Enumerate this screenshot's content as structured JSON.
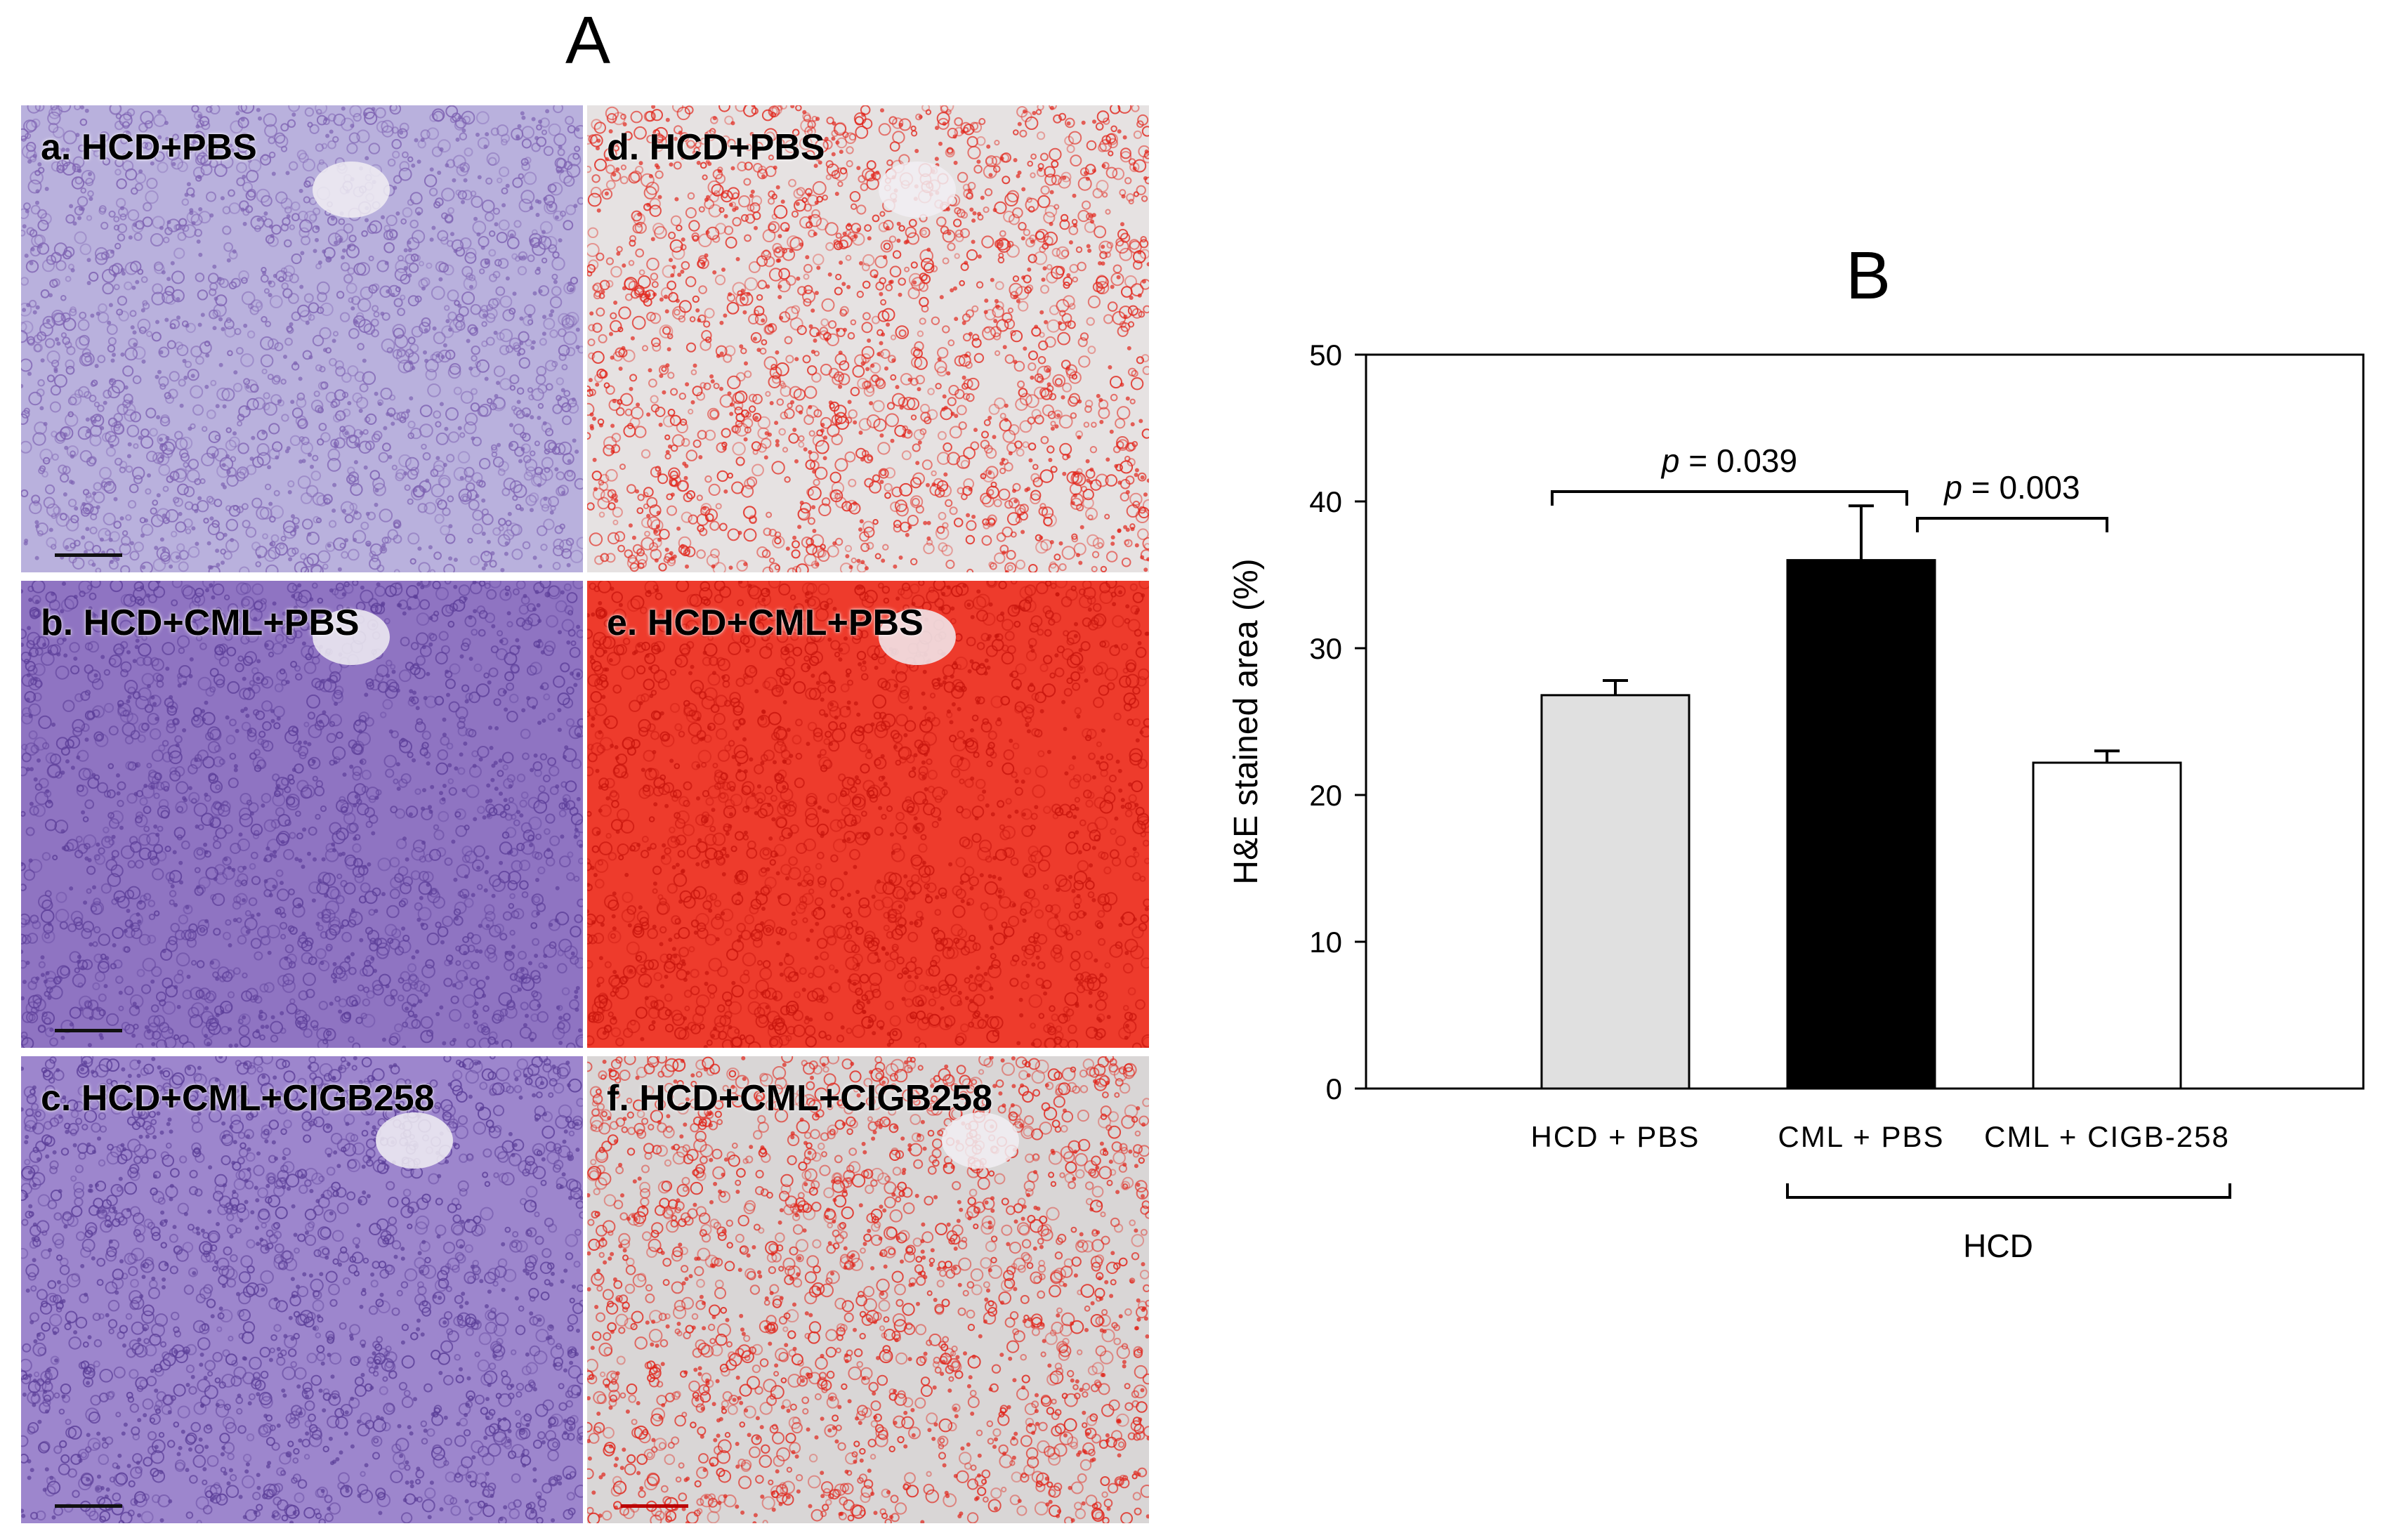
{
  "figure": {
    "panel_a_letter": "A",
    "panel_b_letter": "B"
  },
  "micrographs": [
    {
      "label": "a. HCD+PBS",
      "stain": "H&E",
      "group": "HCD+PBS",
      "color_base": "#b9b1dd",
      "color_dots": "#7e62b2"
    },
    {
      "label": "b. HCD+CML+PBS",
      "stain": "H&E",
      "group": "HCD+CML+PBS",
      "color_base": "#8f74c2",
      "color_dots": "#5d3f9a"
    },
    {
      "label": "c. HCD+CML+CIGB258",
      "stain": "H&E",
      "group": "HCD+CML+CIGB258",
      "color_base": "#9d86cd",
      "color_dots": "#5b3e98"
    },
    {
      "label": "d. HCD+PBS",
      "stain": "processed",
      "group": "HCD+PBS",
      "color_base": "#e6e2e2",
      "color_dots": "#e1251b"
    },
    {
      "label": "e. HCD+CML+PBS",
      "stain": "processed",
      "group": "HCD+CML+PBS",
      "color_base": "#ee3b2c",
      "color_dots": "#c8150d"
    },
    {
      "label": "f. HCD+CML+CIGB258",
      "stain": "processed",
      "group": "HCD+CML+CIGB258",
      "color_base": "#d9d6d6",
      "color_dots": "#e0241a"
    }
  ],
  "chart_data": {
    "type": "bar",
    "title": "",
    "ylabel": "H&E stained area (%)",
    "xlabel": "",
    "ylim": [
      0,
      50
    ],
    "yticks": [
      0,
      10,
      20,
      30,
      40,
      50
    ],
    "categories": [
      "HCD + PBS",
      "CML + PBS",
      "CML + CIGB-258"
    ],
    "values": [
      26.8,
      36.0,
      22.2
    ],
    "errors": [
      1.0,
      3.7,
      0.8
    ],
    "bar_colors": [
      "#e0e0e0",
      "#000000",
      "#ffffff"
    ],
    "group_bracket_label": "HCD",
    "comparisons": [
      {
        "p_symbol": "p",
        "p_value": " = 0.039",
        "between": [
          0,
          1
        ]
      },
      {
        "p_symbol": "p",
        "p_value": " = 0.003",
        "between": [
          1,
          2
        ]
      }
    ]
  }
}
